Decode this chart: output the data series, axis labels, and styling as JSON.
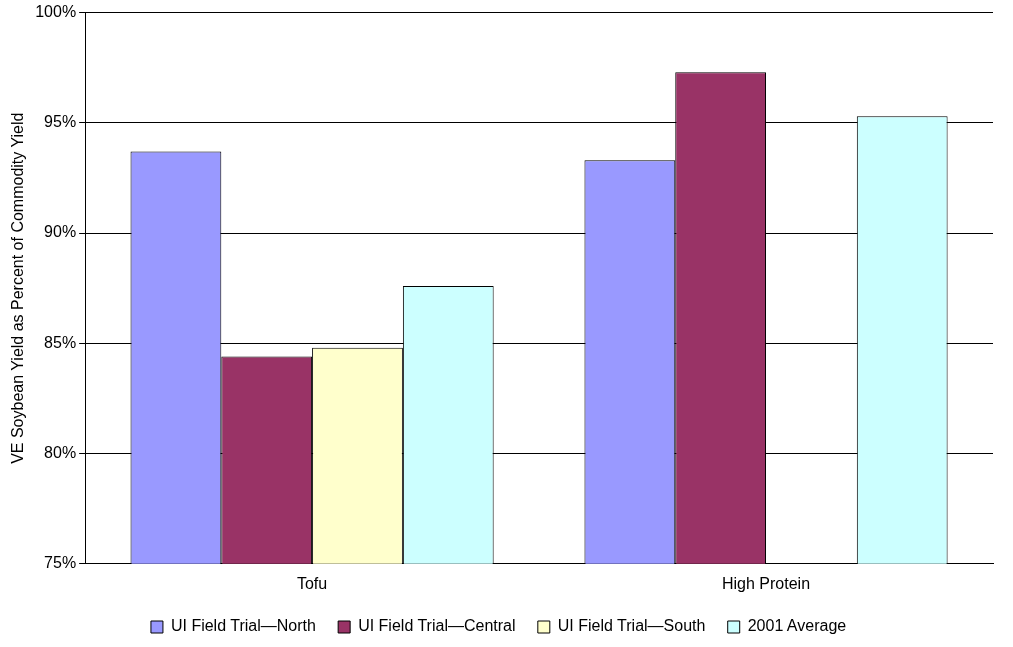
{
  "chart_data": {
    "type": "bar",
    "ylabel": "VE Soybean Yield as Percent of Commodity Yield",
    "categories": [
      "Tofu",
      "High Protein"
    ],
    "series": [
      {
        "name": "UI Field Trial—North",
        "color": "#9999ff",
        "values": [
          93.7,
          93.3
        ]
      },
      {
        "name": "UI Field Trial—Central",
        "color": "#993366",
        "values": [
          84.4,
          97.3
        ]
      },
      {
        "name": "UI Field Trial—South",
        "color": "#ffffcc",
        "values": [
          84.8,
          null
        ]
      },
      {
        "name": "2001 Average",
        "color": "#ccffff",
        "values": [
          87.6,
          95.3
        ]
      }
    ],
    "ylim": [
      75,
      100
    ],
    "yticks": [
      {
        "value": 75,
        "label": "75%"
      },
      {
        "value": 80,
        "label": "80%"
      },
      {
        "value": 85,
        "label": "85%"
      },
      {
        "value": 90,
        "label": "90%"
      },
      {
        "value": 95,
        "label": "95%"
      },
      {
        "value": 100,
        "label": "100%"
      }
    ],
    "grid": "y",
    "legend": "bottom"
  }
}
